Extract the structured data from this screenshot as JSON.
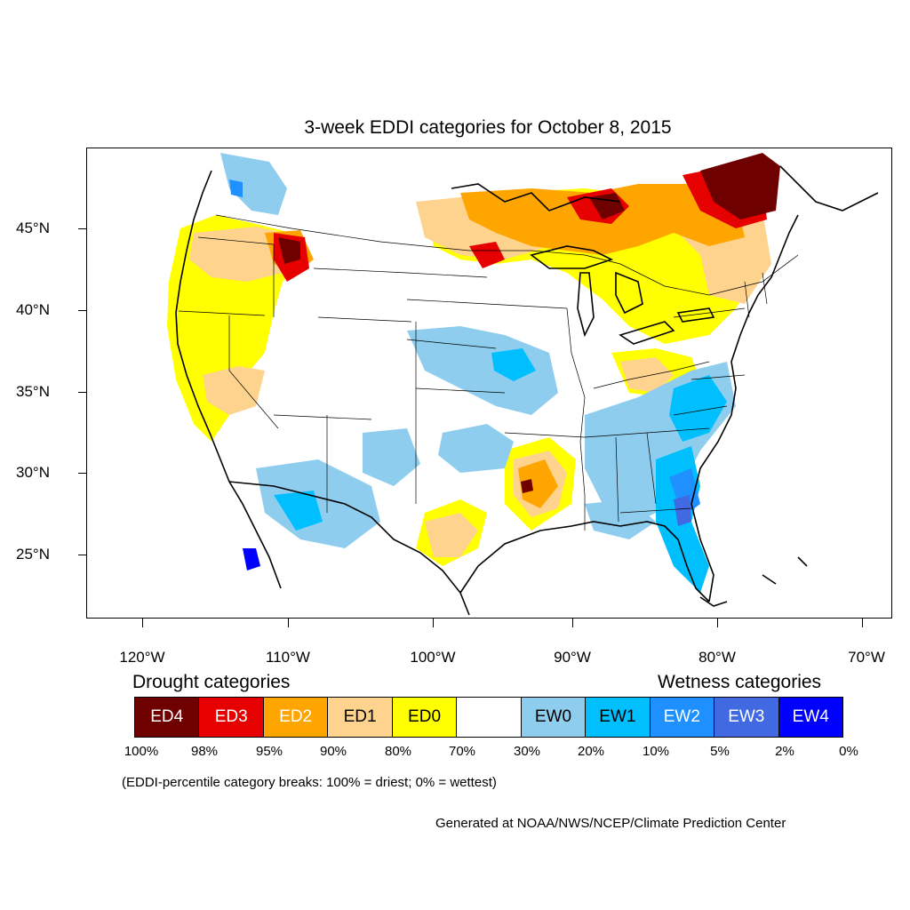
{
  "map": {
    "title": "3-week EDDI categories for October 8, 2015",
    "lat_labels": [
      "45°N",
      "40°N",
      "35°N",
      "30°N",
      "25°N"
    ],
    "lon_labels": [
      "120°W",
      "110°W",
      "100°W",
      "90°W",
      "80°W",
      "70°W"
    ]
  },
  "legend": {
    "drought_title": "Drought categories",
    "wetness_title": "Wetness categories",
    "categories": [
      {
        "label": "ED4",
        "color": "#6e0000",
        "text_color": "#ffffff"
      },
      {
        "label": "ED3",
        "color": "#e60000",
        "text_color": "#ffffff"
      },
      {
        "label": "ED2",
        "color": "#ffa500",
        "text_color": "#ffffff"
      },
      {
        "label": "ED1",
        "color": "#fed38d",
        "text_color": "#000000"
      },
      {
        "label": "ED0",
        "color": "#ffff00",
        "text_color": "#000000"
      },
      {
        "label": "",
        "color": "#ffffff",
        "text_color": "#000000"
      },
      {
        "label": "EW0",
        "color": "#8fcdef",
        "text_color": "#000000"
      },
      {
        "label": "EW1",
        "color": "#00bfff",
        "text_color": "#000000"
      },
      {
        "label": "EW2",
        "color": "#1e90ff",
        "text_color": "#ffffff"
      },
      {
        "label": "EW3",
        "color": "#4169e1",
        "text_color": "#ffffff"
      },
      {
        "label": "EW4",
        "color": "#0000ff",
        "text_color": "#ffffff"
      }
    ],
    "breaks": [
      "100%",
      "98%",
      "95%",
      "90%",
      "80%",
      "70%",
      "30%",
      "20%",
      "10%",
      "5%",
      "2%",
      "0%"
    ]
  },
  "note": "(EDDI-percentile category breaks: 100% = driest; 0% = wettest)",
  "credit": "Generated at NOAA/NWS/NCEP/Climate Prediction Center"
}
